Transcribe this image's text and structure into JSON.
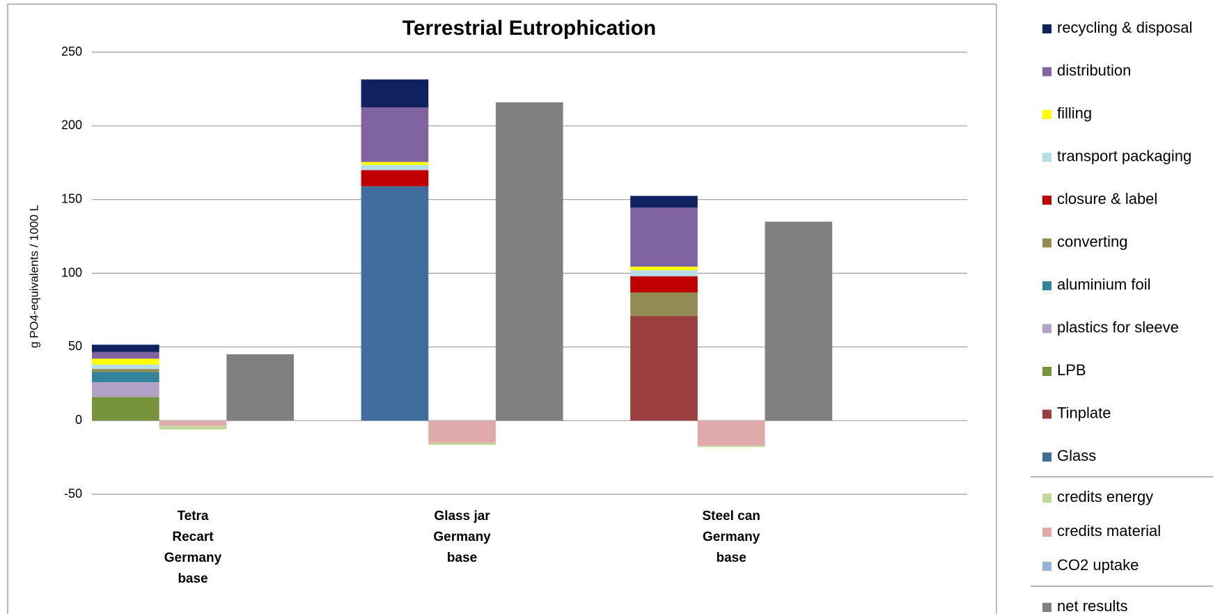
{
  "chart_data": {
    "type": "stacked-bar",
    "title": "Terrestrial Eutrophication",
    "y_label": "g PO4-equivalents / 1000 L",
    "categories": [
      [
        "Tetra",
        "Recart",
        "Germany",
        "base"
      ],
      [
        "Glass jar",
        "Germany",
        "base"
      ],
      [
        "Steel can",
        "Germany",
        "base"
      ]
    ],
    "ylim": [
      -50,
      250
    ],
    "yticks": [
      -50,
      0,
      50,
      100,
      150,
      200,
      250
    ],
    "grid": true,
    "legend": "right",
    "stacks": [
      {
        "series": [
          {
            "name": "recycling & disposal",
            "color": "#0f2160",
            "values": [
              5,
              19,
              8
            ]
          },
          {
            "name": "distribution",
            "color": "#8064a2",
            "values": [
              4.5,
              37,
              40
            ]
          },
          {
            "name": "filling",
            "color": "#ffff00",
            "values": [
              4,
              2,
              2.5
            ]
          },
          {
            "name": "transport packaging",
            "color": "#b7dde8",
            "values": [
              3,
              3.5,
              4
            ]
          },
          {
            "name": "closure & label",
            "color": "#c00000",
            "values": [
              0,
              11,
              11
            ]
          },
          {
            "name": "converting",
            "color": "#948a54",
            "values": [
              2,
              0,
              16
            ]
          },
          {
            "name": "aluminium foil",
            "color": "#31849b",
            "values": [
              7,
              0,
              0
            ]
          },
          {
            "name": "plastics for sleeve",
            "color": "#b3a2c7",
            "values": [
              10,
              0,
              0
            ]
          },
          {
            "name": "LPB",
            "color": "#77933c",
            "values": [
              16,
              0,
              0
            ]
          },
          {
            "name": "Tinplate",
            "color": "#9b3f3e",
            "values": [
              0,
              0,
              71
            ]
          },
          {
            "name": "Glass",
            "color": "#416c9e",
            "values": [
              0,
              159,
              0
            ]
          }
        ]
      },
      {
        "series": [
          {
            "name": "credits energy",
            "color": "#c3d69b",
            "values": [
              -2.5,
              -1.5,
              -1
            ]
          },
          {
            "name": "credits material",
            "color": "#e1aaaa",
            "values": [
              -3.5,
              -15,
              -17
            ]
          },
          {
            "name": "CO2 uptake",
            "color": "#95b3d7",
            "values": [
              0,
              0,
              0
            ]
          }
        ]
      },
      {
        "series": [
          {
            "name": "net results",
            "color": "#808080",
            "values": [
              45,
              216,
              135
            ]
          }
        ]
      }
    ]
  }
}
